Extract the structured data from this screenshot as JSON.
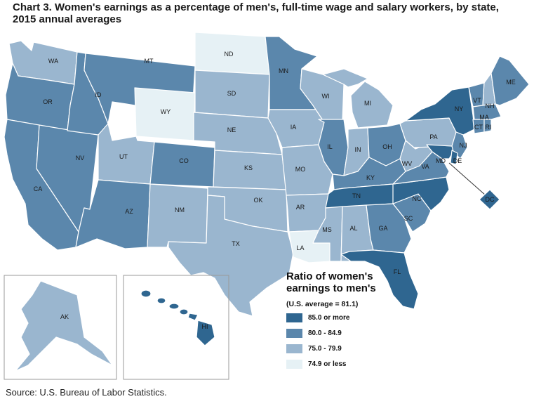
{
  "title": "Chart 3. Women's earnings as a percentage of men's, full-time wage and salary workers, by state, 2015 annual averages",
  "legend": {
    "title": "Ratio of women's earnings to men's",
    "subtitle": "(U.S. average = 81.1)",
    "classes": [
      {
        "label": "85.0 or more",
        "color": "#2f6690"
      },
      {
        "label": "80.0 - 84.9",
        "color": "#5b87ac"
      },
      {
        "label": "75.0 - 79.9",
        "color": "#9ab6cf"
      },
      {
        "label": "74.9 or less",
        "color": "#e6f1f5"
      }
    ]
  },
  "states": {
    "WA": {
      "label": "WA",
      "class": 2
    },
    "OR": {
      "label": "OR",
      "class": 1
    },
    "CA": {
      "label": "CA",
      "class": 1
    },
    "NV": {
      "label": "NV",
      "class": 1
    },
    "ID": {
      "label": "ID",
      "class": 1
    },
    "MT": {
      "label": "MT",
      "class": 1
    },
    "WY": {
      "label": "WY",
      "class": 3
    },
    "UT": {
      "label": "UT",
      "class": 2
    },
    "AZ": {
      "label": "AZ",
      "class": 1
    },
    "CO": {
      "label": "CO",
      "class": 1
    },
    "NM": {
      "label": "NM",
      "class": 2
    },
    "ND": {
      "label": "ND",
      "class": 3
    },
    "SD": {
      "label": "SD",
      "class": 2
    },
    "NE": {
      "label": "NE",
      "class": 2
    },
    "KS": {
      "label": "KS",
      "class": 2
    },
    "OK": {
      "label": "OK",
      "class": 2
    },
    "TX": {
      "label": "TX",
      "class": 2
    },
    "MN": {
      "label": "MN",
      "class": 1
    },
    "IA": {
      "label": "IA",
      "class": 2
    },
    "MO": {
      "label": "MO",
      "class": 2
    },
    "AR": {
      "label": "AR",
      "class": 2
    },
    "LA": {
      "label": "LA",
      "class": 3
    },
    "WI": {
      "label": "WI",
      "class": 2
    },
    "IL": {
      "label": "IL",
      "class": 1
    },
    "MI": {
      "label": "MI",
      "class": 2
    },
    "IN": {
      "label": "IN",
      "class": 2
    },
    "OH": {
      "label": "OH",
      "class": 1
    },
    "KY": {
      "label": "KY",
      "class": 1
    },
    "TN": {
      "label": "TN",
      "class": 0
    },
    "MS": {
      "label": "MS",
      "class": 2
    },
    "AL": {
      "label": "AL",
      "class": 2
    },
    "GA": {
      "label": "GA",
      "class": 1
    },
    "FL": {
      "label": "FL",
      "class": 0
    },
    "SC": {
      "label": "SC",
      "class": 1
    },
    "NC": {
      "label": "NC",
      "class": 0
    },
    "VA": {
      "label": "VA",
      "class": 1
    },
    "WV": {
      "label": "WV",
      "class": 2
    },
    "PA": {
      "label": "PA",
      "class": 2
    },
    "NY": {
      "label": "NY",
      "class": 0
    },
    "NJ": {
      "label": "NJ",
      "class": 1
    },
    "DE": {
      "label": "DE",
      "class": 0
    },
    "MD": {
      "label": "MD",
      "class": 0
    },
    "DC": {
      "label": "DC",
      "class": 0
    },
    "VT": {
      "label": "VT",
      "class": 1
    },
    "NH": {
      "label": "NH",
      "class": 2
    },
    "ME": {
      "label": "ME",
      "class": 1
    },
    "MA": {
      "label": "MA",
      "class": 1
    },
    "CT": {
      "label": "CT",
      "class": 1
    },
    "RI": {
      "label": "RI",
      "class": 1
    },
    "AK": {
      "label": "AK",
      "class": 2
    },
    "HI": {
      "label": "HI",
      "class": 0
    }
  },
  "source": "Source: U.S. Bureau of Labor Statistics."
}
